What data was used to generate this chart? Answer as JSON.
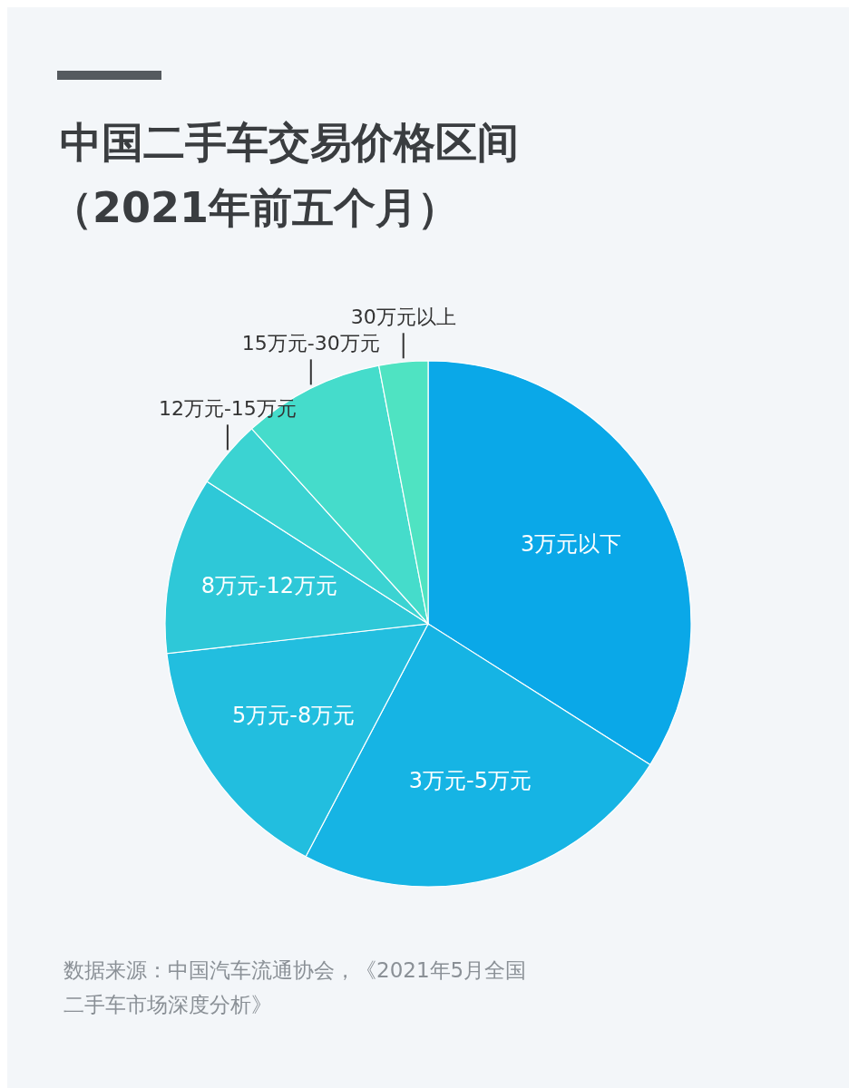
{
  "chart_data": {
    "type": "pie",
    "title": "中国二手车交易价格区间",
    "subtitle": "（2021年前五个月）",
    "categories": [
      "3万元以下",
      "3万元-5万元",
      "5万元-8万元",
      "8万元-12万元",
      "12万元-15万元",
      "15万元-30万元",
      "30万元以上"
    ],
    "values": [
      34,
      23.7,
      15.5,
      10.9,
      4.2,
      8.7,
      3.0
    ],
    "colors": [
      "#0aa8e8",
      "#16b4e4",
      "#22bedf",
      "#2ec8d8",
      "#3bd3d2",
      "#45dccb",
      "#4fe3c2"
    ],
    "annotations": [
      "数据来源：中国汽车流通协会，《2021年5月全国二手车市场深度分析》"
    ]
  }
}
